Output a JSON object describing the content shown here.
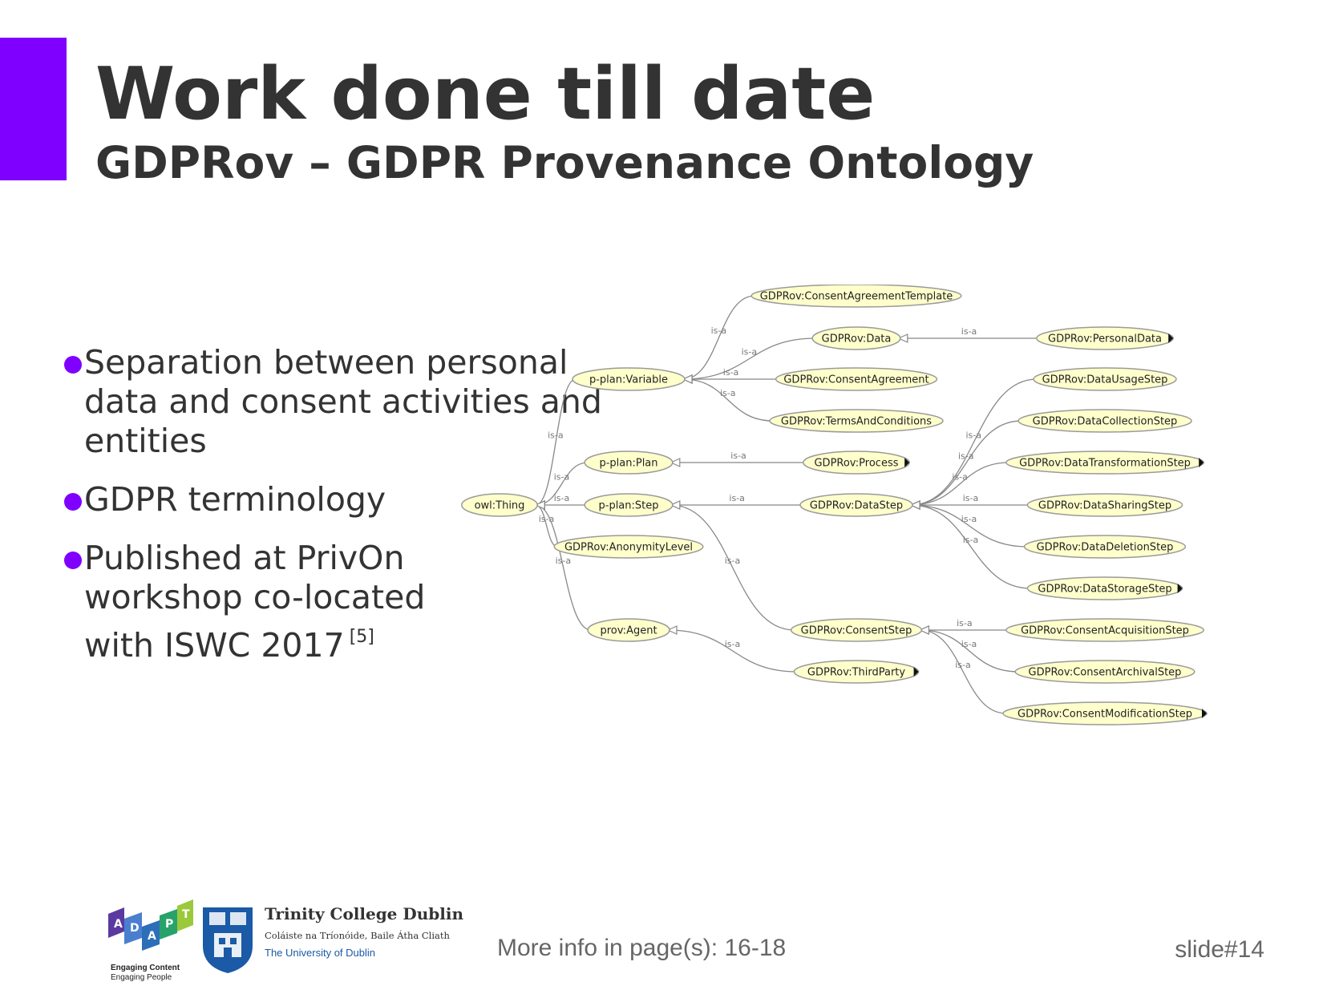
{
  "colors": {
    "accent": "#8000ff",
    "node_fill": "#ffffcc",
    "node_stroke": "#9a9a9a",
    "edge": "#888888",
    "tcd_blue": "#1a5aa6"
  },
  "slide": {
    "title": "Work done till date",
    "subtitle": "GDPRov – GDPR Provenance Ontology",
    "bullets": [
      {
        "text": "Separation between personal data and consent activities and entities",
        "sup": ""
      },
      {
        "text": "GDPR terminology",
        "sup": ""
      },
      {
        "text": "Published at PrivOn workshop co-located with ISWC 2017",
        "sup": "[5]"
      }
    ],
    "more_info": "More info in page(s): 16-18",
    "slide_number": "slide#14"
  },
  "logos": {
    "adapt": {
      "letters": [
        "A",
        "D",
        "A",
        "P",
        "T"
      ],
      "caption_line1": "Engaging Content",
      "caption_line2": "Engaging People",
      "icon": "adapt-logo-icon"
    },
    "tcd": {
      "name": "Trinity College Dublin",
      "irish": "Coláiste na Tríonóide, Baile Átha Cliath",
      "university": "The University of Dublin",
      "icon": "tcd-shield-icon"
    }
  },
  "diagram": {
    "edge_label": "is-a",
    "nodes": [
      {
        "id": "thing",
        "label": "owl:Thing"
      },
      {
        "id": "variable",
        "label": "p-plan:Variable"
      },
      {
        "id": "plan",
        "label": "p-plan:Plan"
      },
      {
        "id": "step",
        "label": "p-plan:Step"
      },
      {
        "id": "anon",
        "label": "GDPRov:AnonymityLevel"
      },
      {
        "id": "agent",
        "label": "prov:Agent"
      },
      {
        "id": "cat",
        "label": "GDPRov:ConsentAgreementTemplate"
      },
      {
        "id": "data",
        "label": "GDPRov:Data"
      },
      {
        "id": "ca",
        "label": "GDPRov:ConsentAgreement"
      },
      {
        "id": "tac",
        "label": "GDPRov:TermsAndConditions"
      },
      {
        "id": "process",
        "label": "GDPRov:Process",
        "more": true
      },
      {
        "id": "datastep",
        "label": "GDPRov:DataStep"
      },
      {
        "id": "consentstep",
        "label": "GDPRov:ConsentStep"
      },
      {
        "id": "thirdparty",
        "label": "GDPRov:ThirdParty",
        "more": true
      },
      {
        "id": "personal",
        "label": "GDPRov:PersonalData",
        "more": true
      },
      {
        "id": "usage",
        "label": "GDPRov:DataUsageStep"
      },
      {
        "id": "collection",
        "label": "GDPRov:DataCollectionStep"
      },
      {
        "id": "transform",
        "label": "GDPRov:DataTransformationStep",
        "more": true
      },
      {
        "id": "sharing",
        "label": "GDPRov:DataSharingStep"
      },
      {
        "id": "deletion",
        "label": "GDPRov:DataDeletionStep"
      },
      {
        "id": "storage",
        "label": "GDPRov:DataStorageStep",
        "more": true
      },
      {
        "id": "acq",
        "label": "GDPRov:ConsentAcquisitionStep"
      },
      {
        "id": "arch",
        "label": "GDPRov:ConsentArchivalStep"
      },
      {
        "id": "mod",
        "label": "GDPRov:ConsentModificationStep",
        "more": true
      }
    ],
    "edges": [
      {
        "from": "variable",
        "to": "thing"
      },
      {
        "from": "plan",
        "to": "thing"
      },
      {
        "from": "step",
        "to": "thing"
      },
      {
        "from": "anon",
        "to": "thing"
      },
      {
        "from": "agent",
        "to": "thing"
      },
      {
        "from": "cat",
        "to": "variable"
      },
      {
        "from": "data",
        "to": "variable"
      },
      {
        "from": "ca",
        "to": "variable"
      },
      {
        "from": "tac",
        "to": "variable"
      },
      {
        "from": "process",
        "to": "plan"
      },
      {
        "from": "datastep",
        "to": "step"
      },
      {
        "from": "consentstep",
        "to": "step"
      },
      {
        "from": "thirdparty",
        "to": "agent"
      },
      {
        "from": "personal",
        "to": "data"
      },
      {
        "from": "usage",
        "to": "datastep"
      },
      {
        "from": "collection",
        "to": "datastep"
      },
      {
        "from": "transform",
        "to": "datastep"
      },
      {
        "from": "sharing",
        "to": "datastep"
      },
      {
        "from": "deletion",
        "to": "datastep"
      },
      {
        "from": "storage",
        "to": "datastep"
      },
      {
        "from": "acq",
        "to": "consentstep"
      },
      {
        "from": "arch",
        "to": "consentstep"
      },
      {
        "from": "mod",
        "to": "consentstep"
      }
    ]
  }
}
